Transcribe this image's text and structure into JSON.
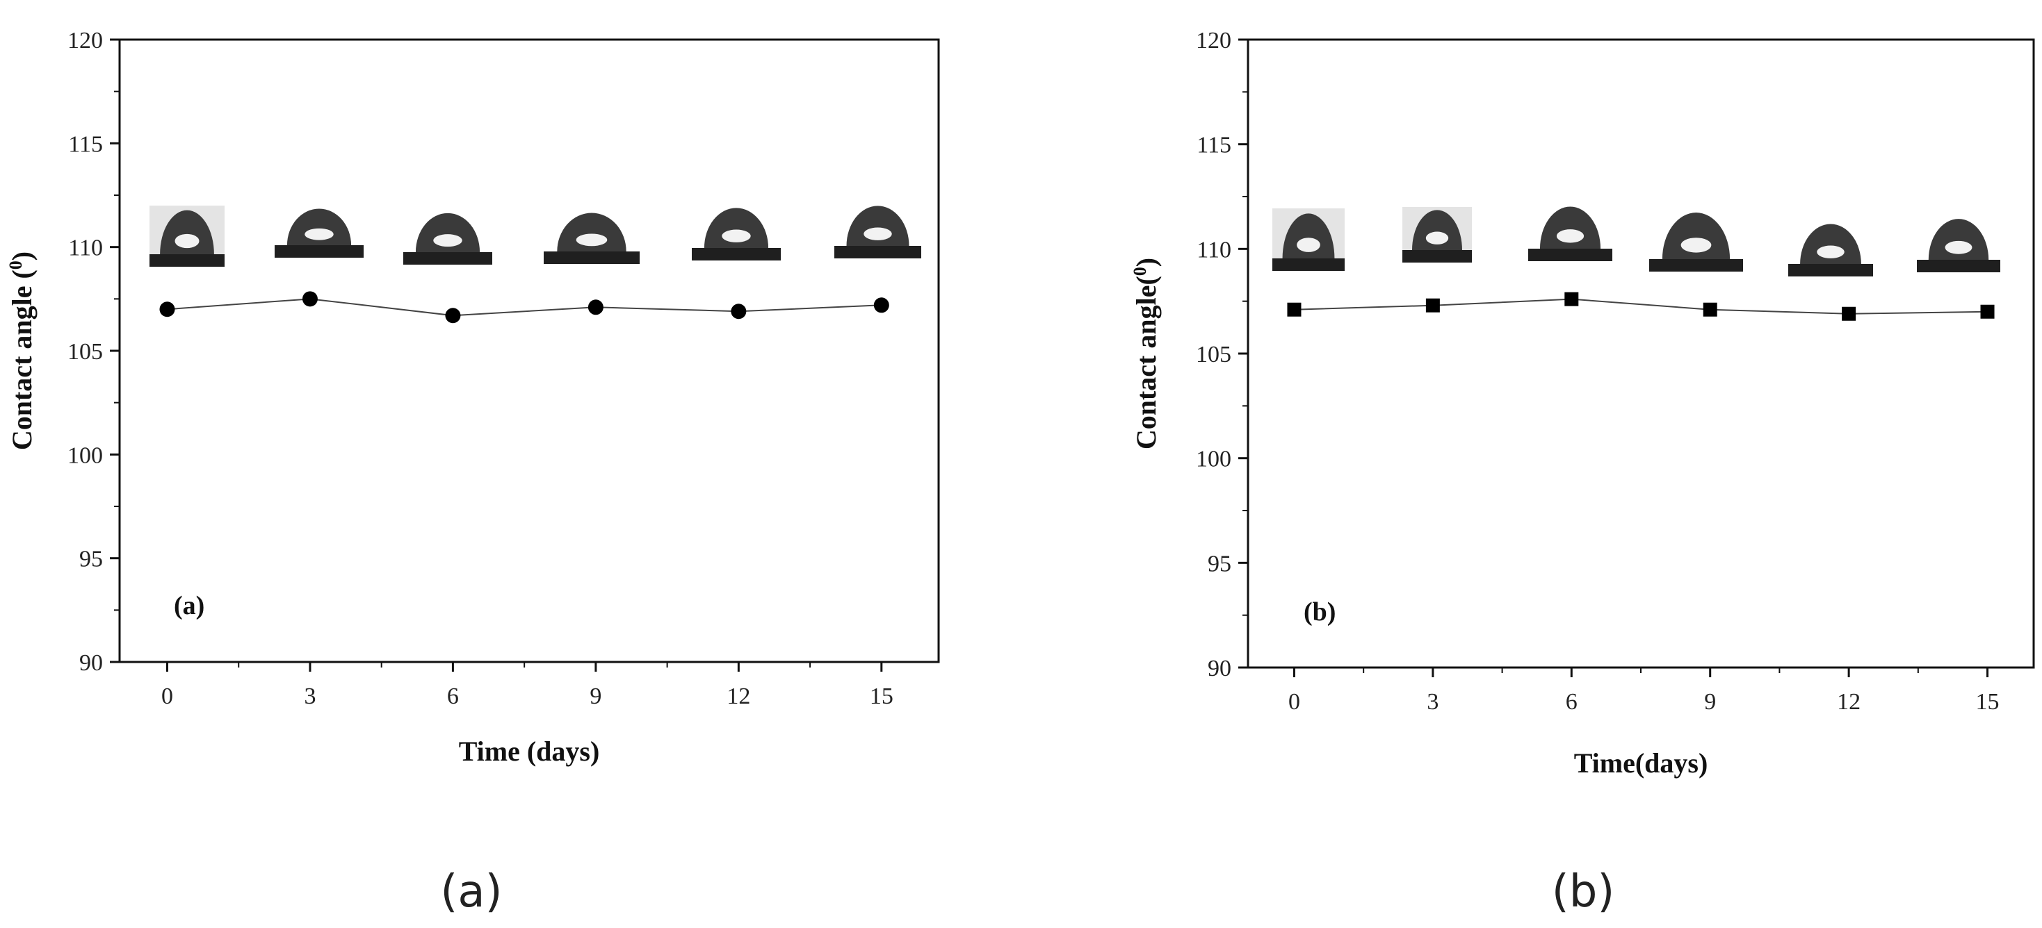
{
  "chart_data": [
    {
      "type": "line",
      "panel_label": "(a)",
      "caption": "(a)",
      "xlabel": "Time (days)",
      "ylabel_main": "Contact angle (",
      "ylabel_sup": "0",
      "ylabel_end": ")",
      "x": [
        0,
        3,
        6,
        9,
        12,
        15
      ],
      "xticks": [
        "0",
        "3",
        "6",
        "9",
        "12",
        "15"
      ],
      "yticks": [
        "90",
        "95",
        "100",
        "105",
        "110",
        "115",
        "120"
      ],
      "xlim": [
        -1,
        16.2
      ],
      "ylim": [
        90,
        120
      ],
      "series": [
        {
          "marker": "circle",
          "color": "#000000",
          "values": [
            107.0,
            107.5,
            106.7,
            107.1,
            106.9,
            107.2
          ]
        }
      ],
      "droplet_images": 6,
      "grid": false
    },
    {
      "type": "line",
      "panel_label": "(b)",
      "caption": "(b)",
      "xlabel": "Time(days)",
      "ylabel_main": "Contact angle(",
      "ylabel_sup": "0",
      "ylabel_end": ")",
      "x": [
        0,
        3,
        6,
        9,
        12,
        15
      ],
      "xticks": [
        "0",
        "3",
        "6",
        "9",
        "12",
        "15"
      ],
      "yticks": [
        "90",
        "95",
        "100",
        "105",
        "110",
        "115",
        "120"
      ],
      "xlim": [
        -1,
        16.0
      ],
      "ylim": [
        90,
        120
      ],
      "series": [
        {
          "marker": "square",
          "color": "#000000",
          "values": [
            107.1,
            107.3,
            107.6,
            107.1,
            106.9,
            107.0
          ]
        }
      ],
      "droplet_images": 6,
      "grid": false
    }
  ]
}
